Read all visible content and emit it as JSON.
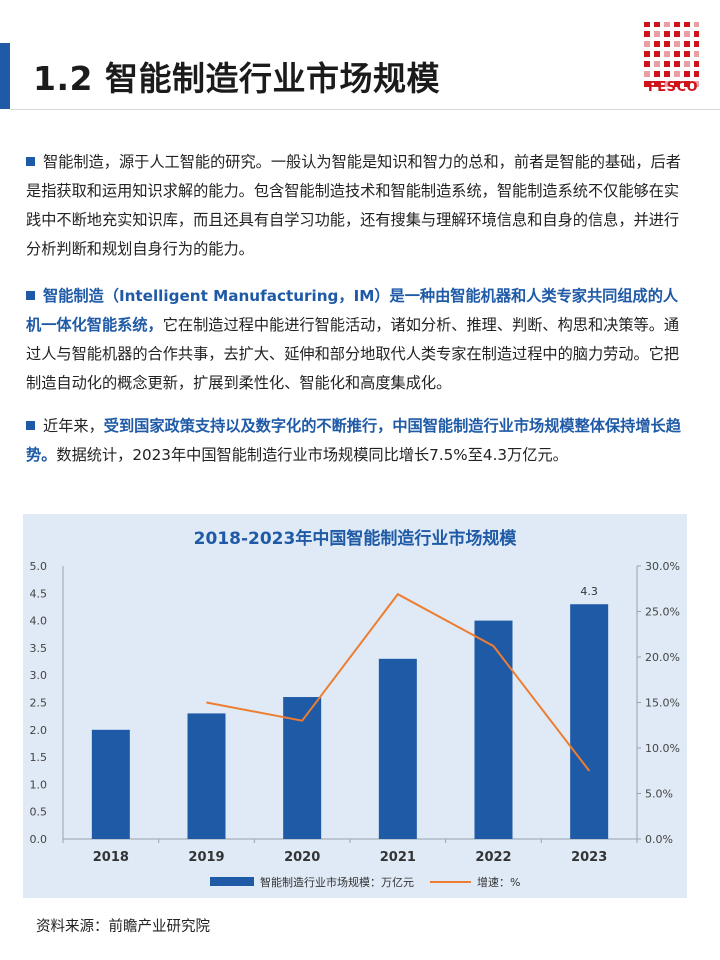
{
  "header": {
    "title": "1.2 智能制造行业市场规模",
    "logo_text": "FESCO"
  },
  "paragraphs": [
    {
      "segments": [
        {
          "text": "智能制造，源于人工智能的研究。一般认为智能是知识和智力的总和，前者是智能的基础，后者是指获取和运用知识求解的能力。包含智能制造技术和智能制造系统，智能制造系统不仅能够在实践中不断地充实知识库，而且还具有自学习功能，还有搜集与理解环境信息和自身的信息，并进行分析判断和规划自身行为的能力。",
          "highlight": false
        }
      ]
    },
    {
      "segments": [
        {
          "text": "智能制造（Intelligent Manufacturing，IM）是一种由智能机器和人类专家共同组成的人机一体化智能系统，",
          "highlight": true
        },
        {
          "text": "它在制造过程中能进行智能活动，诸如分析、推理、判断、构思和决策等。通过人与智能机器的合作共事，去扩大、延伸和部分地取代人类专家在制造过程中的脑力劳动。它把制造自动化的概念更新，扩展到柔性化、智能化和高度集成化。",
          "highlight": false
        }
      ]
    },
    {
      "segments": [
        {
          "text": "近年来，",
          "highlight": false
        },
        {
          "text": "受到国家政策支持以及数字化的不断推行，中国智能制造行业市场规模整体保持增长趋势。",
          "highlight": true
        },
        {
          "text": "数据统计，2023年中国智能制造行业市场规模同比增长7.5%至4.3万亿元。",
          "highlight": false
        }
      ]
    }
  ],
  "chart_data": {
    "type": "bar",
    "title": "2018-2023年中国智能制造行业市场规模",
    "categories": [
      "2018",
      "2019",
      "2020",
      "2021",
      "2022",
      "2023"
    ],
    "series": [
      {
        "name": "智能制造行业市场规模：万亿元",
        "type": "bar",
        "axis": "left",
        "values": [
          2.0,
          2.3,
          2.6,
          3.3,
          4.0,
          4.3
        ],
        "color": "#1f5aa6"
      },
      {
        "name": "增速：%",
        "type": "line",
        "axis": "right",
        "values": [
          null,
          15.0,
          13.0,
          26.9,
          21.2,
          7.5
        ],
        "color": "#ed7d31"
      }
    ],
    "data_labels": [
      {
        "category": "2023",
        "series": 0,
        "text": "4.3"
      }
    ],
    "left_axis": {
      "min": 0,
      "max": 5,
      "ticks": [
        "0.0",
        "0.5",
        "1.0",
        "1.5",
        "2.0",
        "2.5",
        "3.0",
        "3.5",
        "4.0",
        "4.5",
        "5.0"
      ]
    },
    "right_axis": {
      "min": 0,
      "max": 30,
      "ticks": [
        "0.0%",
        "5.0%",
        "10.0%",
        "15.0%",
        "20.0%",
        "25.0%",
        "30.0%"
      ]
    },
    "grid": false,
    "legend": "bottom"
  },
  "source": "资料来源：前瞻产业研究院"
}
